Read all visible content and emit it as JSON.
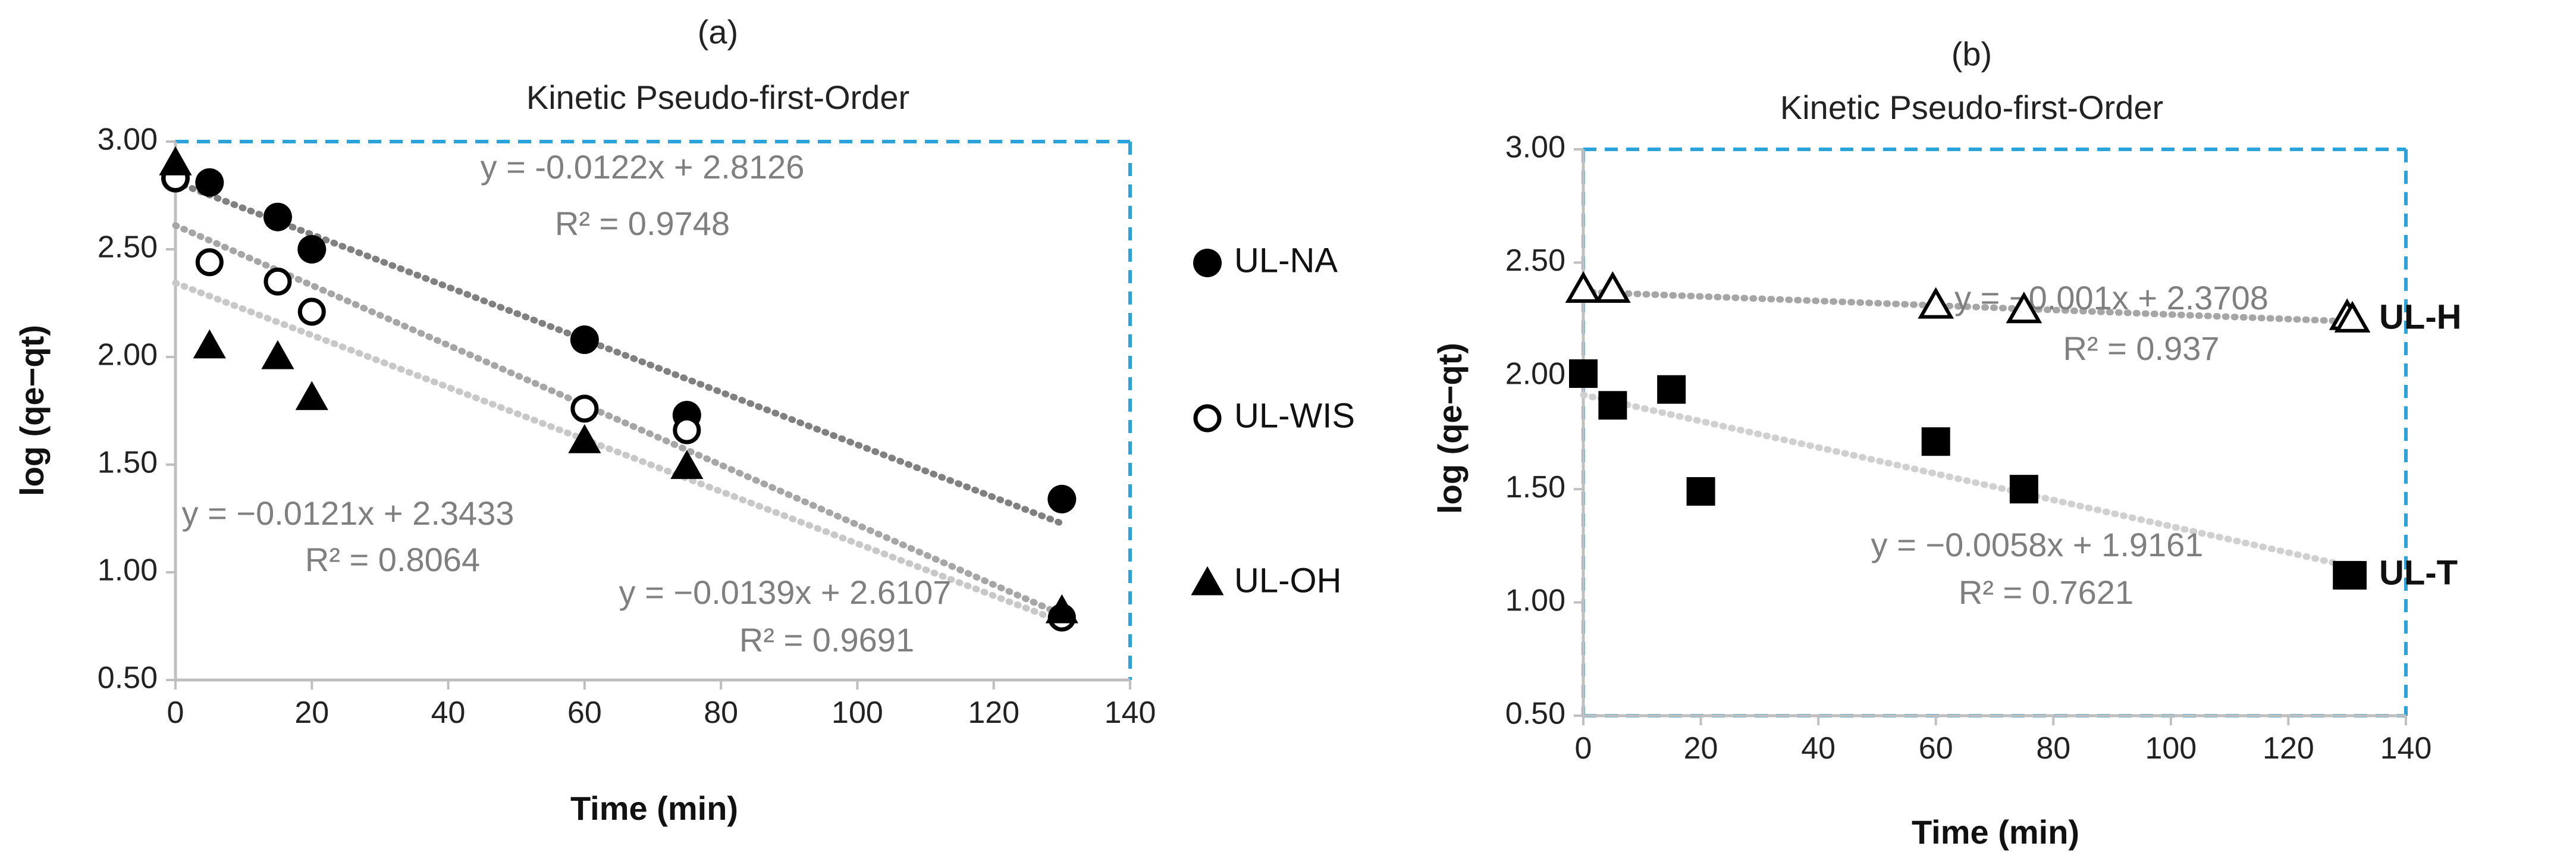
{
  "chart_data": [
    {
      "type": "scatter",
      "label": "(a)",
      "title": "Kinetic Pseudo-first-Order",
      "xlabel": "Time (min)",
      "ylabel": "log (qe−qt)",
      "xlim": [
        0,
        140
      ],
      "ylim": [
        0.5,
        3.0
      ],
      "xticks": [
        "0",
        "20",
        "40",
        "60",
        "80",
        "100",
        "120",
        "140"
      ],
      "yticks": [
        "0.50",
        "1.00",
        "1.50",
        "2.00",
        "2.50",
        "3.00"
      ],
      "grid": false,
      "plot_border": "dashed",
      "border_color": "#29a3d9",
      "legend_position": "right",
      "series": [
        {
          "name": "UL-NA",
          "marker": "circle-filled",
          "points": [
            [
              0,
              2.83
            ],
            [
              5,
              2.81
            ],
            [
              15,
              2.65
            ],
            [
              20,
              2.5
            ],
            [
              60,
              2.08
            ],
            [
              75,
              1.73
            ],
            [
              130,
              1.34
            ]
          ],
          "trend": {
            "slope": -0.0122,
            "intercept": 2.8126,
            "color": "#808080"
          },
          "equation": "y = -0.0122x + 2.8126",
          "r2": "R² = 0.9748"
        },
        {
          "name": "UL-WIS",
          "marker": "circle-open",
          "points": [
            [
              0,
              2.83
            ],
            [
              5,
              2.44
            ],
            [
              15,
              2.35
            ],
            [
              20,
              2.21
            ],
            [
              60,
              1.76
            ],
            [
              75,
              1.66
            ],
            [
              130,
              0.79
            ]
          ],
          "trend": {
            "slope": -0.0139,
            "intercept": 2.6107,
            "color": "#a6a6a6"
          },
          "equation": "y = −0.0139x + 2.6107",
          "r2": "R² = 0.9691"
        },
        {
          "name": "UL-OH",
          "marker": "triangle-filled",
          "points": [
            [
              0,
              2.9
            ],
            [
              5,
              2.05
            ],
            [
              15,
              2.0
            ],
            [
              20,
              1.81
            ],
            [
              60,
              1.61
            ],
            [
              75,
              1.49
            ],
            [
              130,
              0.82
            ]
          ],
          "trend": {
            "slope": -0.0121,
            "intercept": 2.3433,
            "color": "#c8c8c8"
          },
          "equation": "y = −0.0121x + 2.3433",
          "r2": "R² = 0.8064"
        }
      ]
    },
    {
      "type": "scatter",
      "label": "(b)",
      "title": "Kinetic Pseudo-first-Order",
      "xlabel": "Time (min)",
      "ylabel": "log (qe−qt)",
      "xlim": [
        0,
        140
      ],
      "ylim": [
        0.5,
        3.0
      ],
      "xticks": [
        "0",
        "20",
        "40",
        "60",
        "80",
        "100",
        "120",
        "140"
      ],
      "yticks": [
        "0.50",
        "1.00",
        "1.50",
        "2.00",
        "2.50",
        "3.00"
      ],
      "grid": false,
      "plot_border": "dashed",
      "border_color": "#29a3d9",
      "legend_position": "right",
      "series": [
        {
          "name": "UL-H",
          "marker": "triangle-open",
          "points": [
            [
              0,
              2.38
            ],
            [
              5,
              2.38
            ],
            [
              60,
              2.31
            ],
            [
              75,
              2.29
            ],
            [
              130,
              2.26
            ]
          ],
          "trend": {
            "slope": -0.001,
            "intercept": 2.3708,
            "color": "#a6a6a6"
          },
          "equation": "y = −0.001x + 2.3708",
          "r2": "R² = 0.937"
        },
        {
          "name": "UL-T",
          "marker": "square-filled",
          "points": [
            [
              0,
              2.01
            ],
            [
              5,
              1.87
            ],
            [
              15,
              1.94
            ],
            [
              20,
              1.49
            ],
            [
              60,
              1.71
            ],
            [
              75,
              1.5
            ],
            [
              130,
              1.12
            ]
          ],
          "trend": {
            "slope": -0.0058,
            "intercept": 1.9161,
            "color": "#d0d0d0"
          },
          "equation": "y = −0.0058x + 1.9161",
          "r2": "R² = 0.7621"
        }
      ]
    }
  ]
}
